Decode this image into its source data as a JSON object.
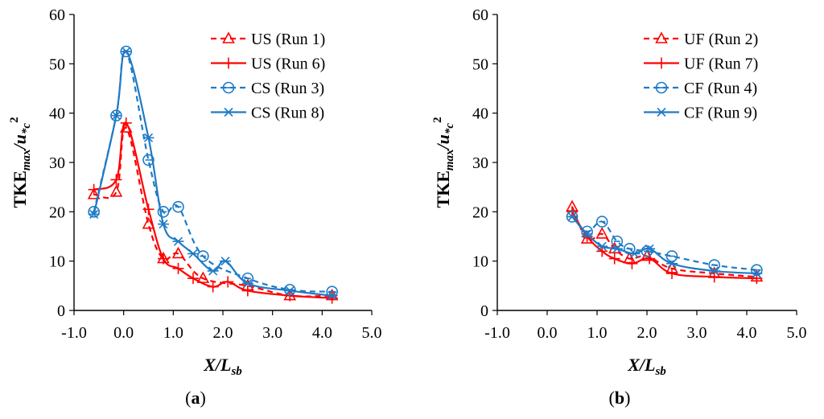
{
  "chart_data": [
    {
      "type": "line",
      "panel_label_open": "(",
      "panel_label_letter": "a",
      "panel_label_close": ")",
      "xlabel_main": "X/L",
      "xlabel_sub": "sb",
      "ylabel_main": "TKE",
      "ylabel_sub1": "max",
      "ylabel_mid": "/u",
      "ylabel_sub2": "*c",
      "ylabel_sup": "2",
      "xlim": [
        -1.0,
        5.0
      ],
      "ylim": [
        0,
        60
      ],
      "xticks": [
        "-1.0",
        "0.0",
        "1.0",
        "2.0",
        "3.0",
        "4.0",
        "5.0"
      ],
      "yticks": [
        "0",
        "10",
        "20",
        "30",
        "40",
        "50",
        "60"
      ],
      "legend_position": "top-right",
      "series": [
        {
          "name": "US (Run 1)",
          "color": "#ff0000",
          "dashed": true,
          "marker": "triangle",
          "x": [
            -0.6,
            -0.15,
            0.05,
            0.5,
            0.8,
            1.1,
            1.6,
            2.5,
            3.35,
            4.2
          ],
          "y": [
            23.5,
            24,
            37,
            17.5,
            10.5,
            11.5,
            6.5,
            5,
            3,
            3
          ]
        },
        {
          "name": "US (Run 6)",
          "color": "#ff0000",
          "dashed": false,
          "marker": "plus",
          "x": [
            -0.6,
            -0.15,
            0.05,
            0.5,
            0.8,
            1.1,
            1.4,
            1.8,
            2.1,
            2.5,
            3.35,
            4.2
          ],
          "y": [
            24.5,
            26.5,
            38,
            20.5,
            10.5,
            8.5,
            6.5,
            4.8,
            5.8,
            4,
            3,
            2.5
          ]
        },
        {
          "name": "CS (Run 3)",
          "color": "#1f7bc6",
          "dashed": true,
          "marker": "circle-minus",
          "x": [
            -0.6,
            -0.15,
            0.05,
            0.5,
            0.8,
            1.1,
            1.6,
            2.5,
            3.35,
            4.2
          ],
          "y": [
            20,
            39.5,
            52.5,
            30.5,
            20,
            21,
            11,
            6.5,
            4.2,
            3.8
          ]
        },
        {
          "name": "CS (Run 8)",
          "color": "#1f7bc6",
          "dashed": false,
          "marker": "asterisk",
          "x": [
            -0.6,
            -0.15,
            0.05,
            0.5,
            0.8,
            1.1,
            1.4,
            1.8,
            2.05,
            2.5,
            3.35,
            4.2
          ],
          "y": [
            19.5,
            39.5,
            52.5,
            35,
            17.5,
            14,
            11.5,
            8,
            10,
            5.5,
            4,
            3
          ]
        }
      ]
    },
    {
      "type": "line",
      "panel_label_open": "(",
      "panel_label_letter": "b",
      "panel_label_close": ")",
      "xlabel_main": "X/L",
      "xlabel_sub": "sb",
      "ylabel_main": "TKE",
      "ylabel_sub1": "max",
      "ylabel_mid": "/u",
      "ylabel_sub2": "*c",
      "ylabel_sup": "2",
      "xlim": [
        -1.0,
        5.0
      ],
      "ylim": [
        0,
        60
      ],
      "xticks": [
        "-1.0",
        "0.0",
        "1.0",
        "2.0",
        "3.0",
        "4.0",
        "5.0"
      ],
      "yticks": [
        "0",
        "10",
        "20",
        "30",
        "40",
        "50",
        "60"
      ],
      "legend_position": "top-right",
      "series": [
        {
          "name": "UF (Run 2)",
          "color": "#ff0000",
          "dashed": true,
          "marker": "triangle",
          "x": [
            0.5,
            0.8,
            1.1,
            1.35,
            1.65,
            2.0,
            2.5,
            3.35,
            4.2
          ],
          "y": [
            21,
            14.5,
            15.5,
            12.5,
            10.5,
            11,
            8.5,
            7.5,
            6.8
          ]
        },
        {
          "name": "UF (Run 7)",
          "color": "#ff0000",
          "dashed": false,
          "marker": "plus",
          "x": [
            0.5,
            0.8,
            1.1,
            1.35,
            1.7,
            2.05,
            2.5,
            3.35,
            4.2
          ],
          "y": [
            20,
            15,
            12,
            10.5,
            9.5,
            10.5,
            7.5,
            6.8,
            6.5
          ]
        },
        {
          "name": "CF (Run 4)",
          "color": "#1f7bc6",
          "dashed": true,
          "marker": "circle-minus",
          "x": [
            0.5,
            0.8,
            1.1,
            1.4,
            1.65,
            2.0,
            2.5,
            3.35,
            4.2
          ],
          "y": [
            19,
            16,
            18,
            14,
            12.5,
            12,
            11,
            9.2,
            8.2
          ]
        },
        {
          "name": "CF (Run 9)",
          "color": "#1f7bc6",
          "dashed": false,
          "marker": "asterisk",
          "x": [
            0.5,
            0.8,
            1.1,
            1.4,
            1.75,
            2.05,
            2.5,
            3.35,
            4.2
          ],
          "y": [
            19,
            15.5,
            13,
            12.5,
            11.5,
            12.5,
            9.5,
            8,
            7.5
          ]
        }
      ]
    }
  ]
}
